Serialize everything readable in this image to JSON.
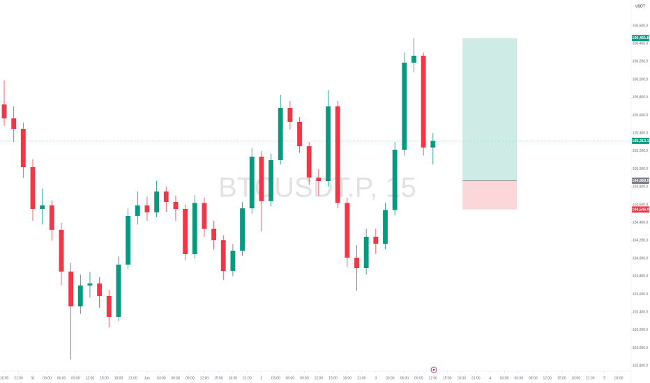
{
  "chart_data": {
    "type": "candlestick",
    "watermark": "BTCUSDT.P, 15",
    "currency": "USDT",
    "up_color": "#089981",
    "down_color": "#f23645",
    "x": [
      0,
      2,
      4,
      6,
      8,
      10,
      12,
      14,
      16,
      18,
      20,
      22,
      24,
      26,
      28,
      30,
      32,
      34,
      36,
      38,
      40,
      42,
      44,
      46,
      48,
      50,
      52,
      54,
      56,
      58,
      60,
      62,
      64,
      66,
      68,
      70,
      72,
      74,
      76,
      78,
      80,
      82,
      84,
      86,
      88,
      90
    ],
    "open": [
      105720.6,
      105565.0,
      105448.3,
      105020.3,
      104553.3,
      104592.2,
      104319.9,
      103853.0,
      103463.9,
      103697.3,
      103720.0,
      103580.6,
      103347.1,
      103930.8,
      104475.5,
      104592.2,
      104514.4,
      104747.9,
      104631.2,
      104553.3,
      104047.5,
      104620.0,
      104330.0,
      104203.1,
      103860.0,
      104086.4,
      104560.0,
      105137.0,
      104640.0,
      105098.1,
      105681.7,
      105526.1,
      105253.7,
      104903.5,
      104864.6,
      105700.0,
      104620.0,
      104008.6,
      103891.9,
      104242.1,
      104164.2,
      104540.0,
      105214.8,
      106187.6,
      106265.4,
      105240.0
    ],
    "high": [
      105990,
      105700,
      105520,
      105110,
      104780,
      104650,
      104400,
      103950,
      103820,
      103850,
      103790,
      103650,
      104020,
      104560,
      104750,
      104690,
      104870,
      104800,
      104700,
      104600,
      104710,
      104680,
      104420,
      104260,
      104160,
      104630,
      105230,
      105200,
      105170,
      105830,
      105760,
      105580,
      105300,
      105000,
      105880,
      105760,
      104680,
      104150,
      104330,
      104330,
      104620,
      105300,
      106300,
      106460,
      106300,
      105400
    ],
    "low": [
      105480,
      105300,
      104900,
      104420,
      104380,
      104200,
      103700,
      102870,
      103380,
      103560,
      103450,
      103230,
      103300,
      103880,
      104380,
      104420,
      104460,
      104520,
      104420,
      103980,
      104000,
      104240,
      104100,
      103760,
      103800,
      104030,
      104500,
      104300,
      104580,
      105050,
      105440,
      105180,
      104820,
      104700,
      104800,
      104560,
      103900,
      103640,
      103820,
      104050,
      104100,
      104480,
      105150,
      106080,
      105150,
      105050
    ],
    "close": [
      105565.0,
      105448.3,
      105020.3,
      104553.3,
      104592.2,
      104319.9,
      103853.0,
      103463.9,
      103697.3,
      103720.0,
      103580.6,
      103347.1,
      103930.8,
      104475.5,
      104592.2,
      104514.4,
      104747.9,
      104631.2,
      104553.3,
      104047.5,
      104620.0,
      104330.0,
      104203.1,
      103860.0,
      104086.4,
      104560.0,
      105137.0,
      104640.0,
      105098.1,
      105681.7,
      105526.1,
      105253.7,
      104903.5,
      104864.6,
      105700.0,
      104620.0,
      104008.6,
      103891.9,
      104242.1,
      104164.2,
      104540.0,
      105214.8,
      106187.6,
      106265.4,
      105240.0,
      105313.1
    ],
    "xlim": [
      -0.88,
      129.7
    ],
    "ylim": [
      102763.5,
      106887.9
    ],
    "xticks": [
      {
        "value": 0,
        "label": "18:00"
      },
      {
        "value": 3,
        "label": "21:00"
      },
      {
        "value": 6,
        "label": "31"
      },
      {
        "value": 9,
        "label": "03:00"
      },
      {
        "value": 12,
        "label": "06:00"
      },
      {
        "value": 15,
        "label": "09:00"
      },
      {
        "value": 18,
        "label": "12:00"
      },
      {
        "value": 21,
        "label": "15:00"
      },
      {
        "value": 24,
        "label": "18:00"
      },
      {
        "value": 27,
        "label": "21:00"
      },
      {
        "value": 30,
        "label": "Jun"
      },
      {
        "value": 33,
        "label": "03:00"
      },
      {
        "value": 36,
        "label": "06:00"
      },
      {
        "value": 39,
        "label": "09:00"
      },
      {
        "value": 42,
        "label": "12:00"
      },
      {
        "value": 45,
        "label": "15:00"
      },
      {
        "value": 48,
        "label": "18:00"
      },
      {
        "value": 51,
        "label": "21:00"
      },
      {
        "value": 54,
        "label": "2"
      },
      {
        "value": 57,
        "label": "03:00"
      },
      {
        "value": 60,
        "label": "06:00"
      },
      {
        "value": 63,
        "label": "09:00"
      },
      {
        "value": 66,
        "label": "12:00"
      },
      {
        "value": 69,
        "label": "15:00"
      },
      {
        "value": 72,
        "label": "18:00"
      },
      {
        "value": 75,
        "label": "21:00"
      },
      {
        "value": 78,
        "label": "3"
      },
      {
        "value": 81,
        "label": "03:00"
      },
      {
        "value": 84,
        "label": "06:00"
      },
      {
        "value": 87,
        "label": "09:00"
      },
      {
        "value": 90,
        "label": "12:00"
      },
      {
        "value": 93,
        "label": "15:00"
      },
      {
        "value": 96,
        "label": "18:00"
      },
      {
        "value": 99,
        "label": "21:00"
      },
      {
        "value": 102,
        "label": "4"
      },
      {
        "value": 105,
        "label": "03:00"
      },
      {
        "value": 108,
        "label": "06:00"
      },
      {
        "value": 111,
        "label": "09:00"
      },
      {
        "value": 114,
        "label": "12:00"
      },
      {
        "value": 117,
        "label": "15:00"
      },
      {
        "value": 120,
        "label": "18:00"
      },
      {
        "value": 123,
        "label": "21:00"
      },
      {
        "value": 126,
        "label": "5"
      },
      {
        "value": 129,
        "label": "03:00"
      }
    ],
    "yticks": [
      {
        "value": 106600,
        "label": "106,600.0"
      },
      {
        "value": 106400,
        "label": "106,400.0"
      },
      {
        "value": 106200,
        "label": "106,200.0"
      },
      {
        "value": 106000,
        "label": "106,000.0"
      },
      {
        "value": 105800,
        "label": "105,800.0"
      },
      {
        "value": 105600,
        "label": "105,600.0"
      },
      {
        "value": 105400,
        "label": "105,400.0"
      },
      {
        "value": 105200,
        "label": "105,200.0"
      },
      {
        "value": 105000,
        "label": "105,000.0"
      },
      {
        "value": 104800,
        "label": "104,800.0"
      },
      {
        "value": 104600,
        "label": "104,600.0"
      },
      {
        "value": 104400,
        "label": "104,400.0"
      },
      {
        "value": 104200,
        "label": "104,200.0"
      },
      {
        "value": 104000,
        "label": "104,000.0"
      },
      {
        "value": 103800,
        "label": "103,800.0"
      },
      {
        "value": 103600,
        "label": "103,600.0"
      },
      {
        "value": 103400,
        "label": "103,400.0"
      },
      {
        "value": 103200,
        "label": "103,200.0"
      },
      {
        "value": 103000,
        "label": "103,000.0"
      },
      {
        "value": 102800,
        "label": "102,800.0"
      }
    ],
    "last_price": {
      "value": 105313.1,
      "label": "105,313.1",
      "color": "#089981"
    },
    "position": {
      "x_start": 96.2,
      "x_end": 107.6,
      "take_profit": {
        "value": 106461.8,
        "label": "106,461.8",
        "color": "#089981"
      },
      "entry": {
        "value": 104868.5,
        "label": "104,868.5",
        "color": "#787b86"
      },
      "stop_loss": {
        "value": 104546.9,
        "label": "104,546.9",
        "color": "#f23645"
      }
    }
  }
}
